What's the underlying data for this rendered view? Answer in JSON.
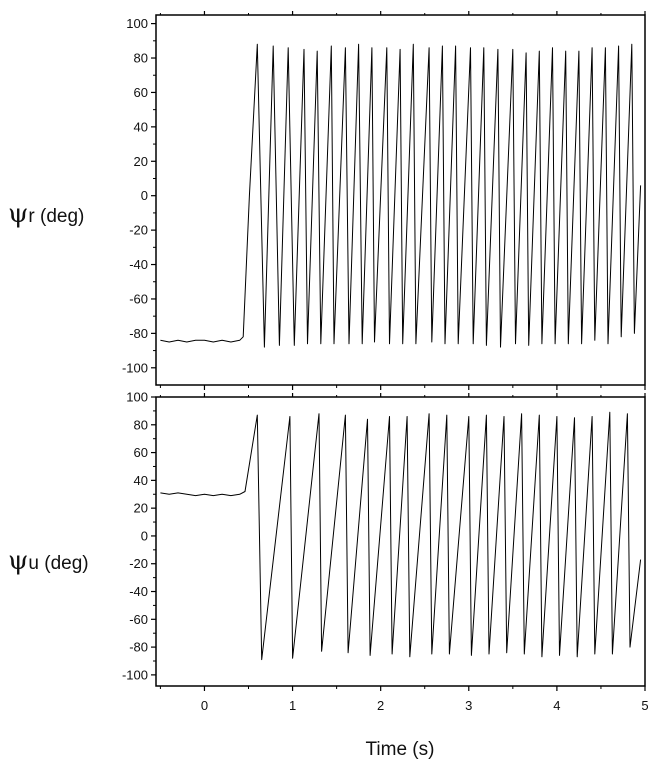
{
  "chart_data": [
    {
      "type": "line",
      "ylabel_symbol": "ψ",
      "ylabel_rest": "r (deg)",
      "xlabel": "",
      "xlim": [
        -0.55,
        5.0
      ],
      "ylim": [
        -110,
        105
      ],
      "yticks": [
        100,
        80,
        60,
        40,
        20,
        0,
        -20,
        -40,
        -60,
        -80,
        -100
      ],
      "ytick_labels": [
        "100",
        "80",
        "60",
        "40",
        "20",
        "0",
        "-20",
        "-40",
        "-60",
        "-80",
        "-100"
      ],
      "xticks": [
        0,
        1,
        2,
        3,
        4,
        5
      ],
      "grid": false,
      "series": [
        {
          "x": [
            -0.5,
            -0.4,
            -0.3,
            -0.2,
            -0.1,
            0.0,
            0.1,
            0.2,
            0.3,
            0.4,
            0.44,
            0.51,
            0.6,
            0.68,
            0.78,
            0.85,
            0.95,
            1.02,
            1.13,
            1.17,
            1.28,
            1.32,
            1.44,
            1.47,
            1.6,
            1.64,
            1.75,
            1.79,
            1.9,
            1.93,
            2.07,
            2.1,
            2.22,
            2.25,
            2.37,
            2.4,
            2.55,
            2.58,
            2.7,
            2.73,
            2.85,
            2.88,
            3.02,
            3.05,
            3.17,
            3.2,
            3.33,
            3.36,
            3.5,
            3.53,
            3.65,
            3.68,
            3.8,
            3.83,
            3.95,
            3.98,
            4.1,
            4.13,
            4.25,
            4.28,
            4.4,
            4.43,
            4.55,
            4.58,
            4.7,
            4.73,
            4.85,
            4.88,
            4.95
          ],
          "y": [
            -84,
            -85,
            -84,
            -85,
            -84,
            -84,
            -85,
            -84,
            -85,
            -84,
            -82,
            0,
            88,
            -88,
            87,
            -87,
            86,
            -87,
            85,
            -86,
            84,
            -86,
            87,
            -86,
            86,
            -86,
            88,
            -86,
            86,
            -85,
            86,
            -86,
            85,
            -86,
            88,
            -86,
            86,
            -85,
            87,
            -86,
            87,
            -86,
            86,
            -86,
            86,
            -87,
            85,
            -88,
            85,
            -86,
            83,
            -87,
            84,
            -86,
            86,
            -86,
            84,
            -86,
            84,
            -86,
            86,
            -84,
            86,
            -86,
            87,
            -82,
            88,
            -80,
            6
          ]
        }
      ]
    },
    {
      "type": "line",
      "ylabel_symbol": "ψ",
      "ylabel_rest": "u (deg)",
      "xlabel": "Time (s)",
      "xlim": [
        -0.55,
        5.0
      ],
      "ylim": [
        -108,
        100
      ],
      "yticks": [
        100,
        80,
        60,
        40,
        20,
        0,
        -20,
        -40,
        -60,
        -80,
        -100
      ],
      "ytick_labels": [
        "100",
        "80",
        "60",
        "40",
        "20",
        "0",
        "-20",
        "-40",
        "-60",
        "-80",
        "-100"
      ],
      "xticks": [
        0,
        1,
        2,
        3,
        4,
        5
      ],
      "xtick_labels": [
        "0",
        "1",
        "2",
        "3",
        "4",
        "5"
      ],
      "grid": false,
      "series": [
        {
          "x": [
            -0.5,
            -0.4,
            -0.3,
            -0.2,
            -0.1,
            0.0,
            0.1,
            0.2,
            0.3,
            0.4,
            0.46,
            0.6,
            0.65,
            0.97,
            1.0,
            1.3,
            1.33,
            1.6,
            1.63,
            1.85,
            1.88,
            2.1,
            2.13,
            2.3,
            2.33,
            2.55,
            2.58,
            2.75,
            2.78,
            3.0,
            3.03,
            3.2,
            3.23,
            3.4,
            3.43,
            3.6,
            3.63,
            3.8,
            3.83,
            4.0,
            4.03,
            4.2,
            4.23,
            4.4,
            4.43,
            4.6,
            4.63,
            4.8,
            4.83,
            4.95
          ],
          "y": [
            31,
            30,
            31,
            30,
            29,
            30,
            29,
            30,
            29,
            30,
            32,
            87,
            -89,
            86,
            -88,
            88,
            -83,
            87,
            -84,
            84,
            -86,
            86,
            -85,
            86,
            -87,
            88,
            -85,
            87,
            -85,
            86,
            -86,
            87,
            -85,
            86,
            -84,
            88,
            -85,
            87,
            -87,
            86,
            -86,
            85,
            -87,
            86,
            -85,
            89,
            -85,
            88,
            -80,
            -17
          ]
        }
      ]
    }
  ]
}
